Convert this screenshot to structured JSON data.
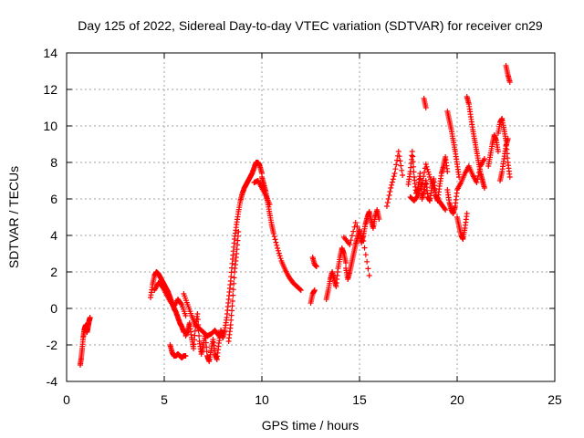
{
  "chart_data": {
    "type": "scatter",
    "title": "Day 125 of 2022, Sidereal Day-to-day VTEC variation (SDTVAR) for receiver cn29",
    "xlabel": "GPS time / hours",
    "ylabel": "SDTVAR / TECUs",
    "xlim": [
      0,
      25
    ],
    "ylim": [
      -4,
      14
    ],
    "xticks": [
      0,
      5,
      10,
      15,
      20,
      25
    ],
    "yticks": [
      -4,
      -2,
      0,
      2,
      4,
      6,
      8,
      10,
      12,
      14
    ],
    "grid": true,
    "marker": "+",
    "series": [
      {
        "name": "SDTVAR",
        "color": "#ff0000",
        "segments": [
          {
            "x": [
              0.7,
              0.75,
              0.8,
              0.85,
              0.9,
              0.95,
              1.0,
              1.05,
              1.1,
              1.15,
              1.2
            ],
            "y": [
              -3.1,
              -2.7,
              -2.2,
              -1.6,
              -1.2,
              -1.0,
              -0.9,
              -1.3,
              -1.0,
              -0.7,
              -0.5
            ]
          },
          {
            "x": [
              4.3,
              4.4,
              4.5,
              4.6,
              4.7,
              4.8,
              4.9,
              5.0,
              5.1,
              5.2,
              5.3,
              5.4,
              5.5,
              5.6,
              5.7,
              5.8,
              5.9,
              6.0
            ],
            "y": [
              0.6,
              1.3,
              1.8,
              2.0,
              1.9,
              1.7,
              1.5,
              1.3,
              1.1,
              0.9,
              0.6,
              0.3,
              0.0,
              -0.2,
              -0.5,
              -0.8,
              -1.0,
              -1.3
            ]
          },
          {
            "x": [
              4.5,
              4.7,
              4.9,
              5.1,
              5.3,
              5.5,
              5.7,
              5.9,
              6.1
            ],
            "y": [
              1.0,
              1.4,
              1.2,
              0.8,
              0.4,
              0.1,
              0.5,
              0.2,
              -0.4
            ]
          },
          {
            "x": [
              5.3,
              5.4,
              5.5,
              5.6,
              5.7,
              5.8,
              5.9,
              6.0,
              6.1
            ],
            "y": [
              -2.0,
              -2.4,
              -2.6,
              -2.6,
              -2.5,
              -2.6,
              -2.7,
              -2.6,
              -2.6
            ]
          },
          {
            "x": [
              6.1,
              6.2,
              6.3,
              6.4,
              6.5,
              6.6,
              6.7,
              6.8,
              6.9,
              7.0,
              7.1,
              7.2,
              7.3,
              7.4,
              7.5,
              7.6,
              7.7,
              7.8,
              7.9,
              8.0
            ],
            "y": [
              -1.5,
              -1.2,
              -0.8,
              -1.6,
              -2.2,
              -1.0,
              -0.3,
              -1.8,
              -2.5,
              -2.0,
              -1.4,
              -2.6,
              -2.9,
              -2.3,
              -1.7,
              -2.5,
              -2.8,
              -1.9,
              -1.2,
              -1.6
            ]
          },
          {
            "x": [
              6.0,
              6.2,
              6.4,
              6.6,
              6.8,
              7.0,
              7.2,
              7.4,
              7.6,
              7.8,
              8.0
            ],
            "y": [
              0.8,
              0.2,
              -0.4,
              -0.9,
              -1.1,
              -1.3,
              -1.5,
              -1.4,
              -1.2,
              -1.5,
              -1.3
            ]
          },
          {
            "x": [
              8.0,
              8.1,
              8.2,
              8.3,
              8.4,
              8.5,
              8.6,
              8.7,
              8.8,
              8.9,
              9.0,
              9.1,
              9.2,
              9.3,
              9.4,
              9.5,
              9.6,
              9.7,
              9.8,
              9.9,
              10.0
            ],
            "y": [
              -1.6,
              -1.2,
              -0.5,
              0.5,
              1.5,
              2.7,
              3.8,
              4.6,
              5.3,
              5.9,
              6.3,
              6.6,
              6.8,
              7.0,
              7.2,
              7.4,
              7.7,
              8.0,
              8.0,
              7.8,
              7.4
            ]
          },
          {
            "x": [
              8.3,
              8.4,
              8.5,
              8.6,
              8.7,
              8.8
            ],
            "y": [
              -1.8,
              -0.9,
              0.4,
              2.0,
              3.0,
              4.2
            ]
          },
          {
            "x": [
              10.0,
              10.1,
              10.2,
              10.3,
              10.4,
              10.5,
              10.6,
              10.8,
              11.0,
              11.2,
              11.4,
              11.6,
              11.8,
              12.0
            ],
            "y": [
              7.2,
              6.8,
              6.4,
              5.8,
              5.2,
              4.6,
              4.1,
              3.3,
              2.6,
              2.1,
              1.7,
              1.4,
              1.2,
              1.0
            ]
          },
          {
            "x": [
              9.6,
              9.8,
              10.0,
              10.2,
              10.4
            ],
            "y": [
              6.9,
              7.0,
              6.6,
              6.2,
              5.7
            ]
          },
          {
            "x": [
              12.5,
              12.6,
              12.7
            ],
            "y": [
              0.3,
              0.8,
              1.0
            ]
          },
          {
            "x": [
              12.6,
              12.7,
              12.8
            ],
            "y": [
              2.8,
              2.4,
              2.3
            ]
          },
          {
            "x": [
              13.3,
              13.4,
              13.5,
              13.6,
              13.7,
              13.8,
              13.9,
              14.0,
              14.1,
              14.2,
              14.3
            ],
            "y": [
              0.5,
              1.0,
              1.6,
              2.0,
              1.6,
              1.2,
              2.2,
              2.8,
              3.3,
              3.0,
              2.5
            ]
          },
          {
            "x": [
              14.3,
              14.4,
              14.5,
              14.6,
              14.7,
              14.8,
              14.9,
              15.0,
              15.1,
              15.2,
              15.3,
              15.4,
              15.5,
              15.6,
              15.7,
              15.8,
              15.9,
              16.0
            ],
            "y": [
              2.2,
              1.6,
              2.0,
              2.5,
              3.0,
              3.5,
              3.9,
              4.3,
              3.6,
              4.0,
              4.6,
              5.0,
              5.3,
              4.8,
              4.4,
              5.0,
              5.4,
              4.9
            ]
          },
          {
            "x": [
              14.2,
              14.5,
              14.8,
              15.2,
              15.5
            ],
            "y": [
              3.9,
              3.5,
              4.7,
              3.7,
              1.8
            ]
          },
          {
            "x": [
              16.4,
              16.6,
              16.8,
              17.0,
              17.2
            ],
            "y": [
              5.6,
              6.6,
              7.4,
              8.6,
              7.3
            ]
          },
          {
            "x": [
              17.5,
              17.6,
              17.7,
              17.8,
              17.9,
              18.0,
              18.1,
              18.2,
              18.3,
              18.4,
              18.5,
              18.6,
              18.7,
              18.8,
              18.9,
              19.0,
              19.1,
              19.2,
              19.3,
              19.4,
              19.5
            ],
            "y": [
              6.8,
              7.5,
              8.6,
              7.2,
              6.3,
              6.6,
              7.4,
              6.0,
              6.4,
              7.0,
              6.1,
              5.9,
              6.6,
              7.1,
              6.2,
              5.9,
              6.7,
              7.4,
              7.8,
              8.3,
              7.5
            ]
          },
          {
            "x": [
              17.6,
              17.8,
              18.0,
              18.2,
              18.4,
              18.6,
              18.8,
              19.0,
              19.2,
              19.4
            ],
            "y": [
              6.1,
              5.9,
              6.2,
              6.8,
              7.9,
              7.2,
              6.6,
              6.0,
              5.7,
              5.4
            ]
          },
          {
            "x": [
              18.3,
              18.4
            ],
            "y": [
              11.5,
              11.0
            ]
          },
          {
            "x": [
              19.5,
              19.6,
              19.7,
              19.8,
              19.9,
              20.0,
              20.1
            ],
            "y": [
              10.8,
              10.3,
              9.8,
              9.2,
              8.6,
              7.9,
              7.2
            ]
          },
          {
            "x": [
              19.5,
              19.6,
              19.7,
              19.8,
              19.9,
              20.0,
              20.2,
              20.4,
              20.6,
              20.8,
              21.0,
              21.2,
              21.4
            ],
            "y": [
              6.5,
              5.8,
              5.4,
              5.2,
              5.6,
              6.5,
              6.9,
              7.4,
              7.8,
              7.3,
              6.9,
              7.8,
              8.2
            ]
          },
          {
            "x": [
              20.0,
              20.1,
              20.2,
              20.3,
              20.4,
              20.5
            ],
            "y": [
              5.0,
              4.5,
              4.0,
              3.8,
              4.4,
              5.2
            ]
          },
          {
            "x": [
              20.5,
              20.6,
              20.7,
              20.8,
              20.9,
              21.0,
              21.1,
              21.2,
              21.3,
              21.4
            ],
            "y": [
              11.6,
              11.2,
              10.5,
              9.8,
              9.2,
              8.6,
              8.0,
              7.4,
              7.0,
              6.6
            ]
          },
          {
            "x": [
              21.6,
              21.7,
              21.8,
              21.9,
              22.0,
              22.1
            ],
            "y": [
              7.8,
              8.4,
              9.0,
              9.5,
              9.2,
              8.6
            ]
          },
          {
            "x": [
              22.1,
              22.2,
              22.3,
              22.4,
              22.5,
              22.6,
              22.7
            ],
            "y": [
              9.6,
              10.2,
              10.4,
              9.8,
              9.2,
              8.0,
              7.2
            ]
          },
          {
            "x": [
              22.2,
              22.3,
              22.4,
              22.5,
              22.6
            ],
            "y": [
              7.0,
              7.5,
              8.2,
              8.9,
              9.3
            ]
          },
          {
            "x": [
              22.5,
              22.6,
              22.7
            ],
            "y": [
              13.3,
              12.8,
              12.4
            ]
          }
        ]
      }
    ]
  }
}
